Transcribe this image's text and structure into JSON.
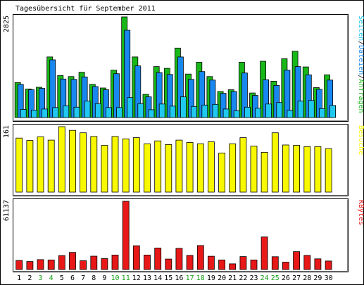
{
  "chart_data": {
    "type": "bar",
    "title": "Tagesübersicht für September 2011",
    "categories": [
      "1",
      "2",
      "3",
      "4",
      "5",
      "6",
      "7",
      "8",
      "9",
      "10",
      "11",
      "12",
      "13",
      "14",
      "15",
      "16",
      "17",
      "18",
      "19",
      "20",
      "21",
      "22",
      "23",
      "24",
      "25",
      "26",
      "27",
      "28",
      "29",
      "30"
    ],
    "weekend_days": [
      "3",
      "4",
      "10",
      "11",
      "17",
      "18",
      "24",
      "25"
    ],
    "colors": {
      "anfragen": "#18b818",
      "dateien": "#1888f0",
      "seiten": "#20c8f0",
      "besuche": "#f8f800",
      "kbytes": "#e81818",
      "weekday_label": "#000000",
      "weekend_label": "#18a018"
    },
    "panels": [
      {
        "id": "hits",
        "ymax_label": "2825",
        "ymax": 2825,
        "series_label_parts": [
          {
            "text": "Seiten",
            "color": "#20c8f0"
          },
          {
            "text": "/",
            "color": "#000000"
          },
          {
            "text": "Dateien",
            "color": "#1888f0"
          },
          {
            "text": "/",
            "color": "#000000"
          },
          {
            "text": "Anfragen",
            "color": "#18b818"
          }
        ],
        "series": [
          {
            "name": "Anfragen",
            "values": [
              980,
              800,
              850,
              1700,
              1180,
              1150,
              1270,
              930,
              830,
              1330,
              2825,
              1700,
              650,
              1430,
              1380,
              1950,
              1220,
              1550,
              1150,
              730,
              780,
              1550,
              690,
              1580,
              1020,
              1650,
              1860,
              1420,
              840,
              1200
            ]
          },
          {
            "name": "Dateien",
            "values": [
              930,
              780,
              820,
              1620,
              1080,
              1070,
              1140,
              870,
              780,
              1230,
              2450,
              1450,
              580,
              1260,
              1210,
              1700,
              1070,
              1290,
              1050,
              680,
              730,
              1250,
              620,
              1060,
              900,
              1330,
              1430,
              1200,
              790,
              1050
            ]
          },
          {
            "name": "Seiten",
            "values": [
              230,
              210,
              240,
              280,
              330,
              290,
              460,
              390,
              280,
              280,
              560,
              390,
              220,
              380,
              320,
              580,
              310,
              350,
              370,
              240,
              190,
              290,
              260,
              380,
              420,
              200,
              460,
              480,
              250,
              340
            ]
          }
        ]
      },
      {
        "id": "visits",
        "ymax_label": "161",
        "ymax": 161,
        "series_label_parts": [
          {
            "text": "Besuche",
            "color": "#f8f800"
          }
        ],
        "series": [
          {
            "name": "Besuche",
            "values": [
              133,
              127,
              136,
              128,
              161,
              152,
              146,
              137,
              115,
              137,
              131,
              134,
              119,
              126,
              117,
              128,
              122,
              119,
              124,
              96,
              119,
              134,
              113,
              98,
              146,
              116,
              115,
              112,
              112,
              107
            ]
          }
        ]
      },
      {
        "id": "kbytes",
        "ymax_label": "61137",
        "ymax": 61137,
        "series_label_parts": [
          {
            "text": "KBytes",
            "color": "#e81818"
          }
        ],
        "series": [
          {
            "name": "KBytes",
            "values": [
              8100,
              7200,
              8900,
              8600,
              12500,
              15300,
              7900,
              12000,
              9800,
              13000,
              61137,
              21300,
              13000,
              19300,
              9400,
              19000,
              12700,
              21500,
              11900,
              8600,
              5100,
              11600,
              8600,
              29200,
              11500,
              6600,
              16000,
              12700,
              9600,
              7600
            ]
          }
        ]
      }
    ]
  }
}
